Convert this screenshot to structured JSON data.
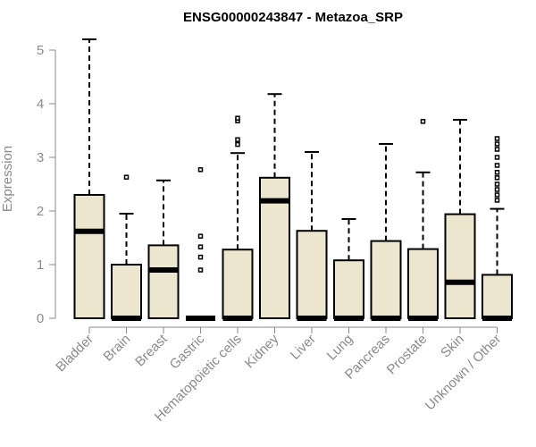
{
  "chart_data": {
    "type": "boxplot",
    "title": "ENSG00000243847 - Metazoa_SRP",
    "xlabel": "",
    "ylabel": "Expression",
    "ylim": [
      0,
      5.2
    ],
    "yticks": [
      0,
      1,
      2,
      3,
      4,
      5
    ],
    "colors": {
      "box_fill": "#ede6ce",
      "stroke": "#000000",
      "axis": "#8a8a8a"
    },
    "categories": [
      "Bladder",
      "Brain",
      "Breast",
      "Gastric",
      "Hematopoietic cells",
      "Kidney",
      "Liver",
      "Lung",
      "Pancreas",
      "Prostate",
      "Skin",
      "Unknown / Other"
    ],
    "boxes": [
      {
        "name": "Bladder",
        "min": 0,
        "q1": 0,
        "median": 1.62,
        "q3": 2.3,
        "max": 5.2,
        "outliers": []
      },
      {
        "name": "Brain",
        "min": 0,
        "q1": 0,
        "median": 0,
        "q3": 1.0,
        "max": 1.95,
        "outliers": [
          2.63
        ]
      },
      {
        "name": "Breast",
        "min": 0,
        "q1": 0,
        "median": 0.9,
        "q3": 1.36,
        "max": 2.57,
        "outliers": []
      },
      {
        "name": "Gastric",
        "min": 0,
        "q1": 0,
        "median": 0,
        "q3": 0,
        "max": 0,
        "outliers": [
          0.9,
          1.14,
          1.33,
          1.53,
          2.77
        ]
      },
      {
        "name": "Hematopoietic cells",
        "min": 0,
        "q1": 0,
        "median": 0,
        "q3": 1.28,
        "max": 3.08,
        "outliers": [
          3.24,
          3.33,
          3.68,
          3.73
        ]
      },
      {
        "name": "Kidney",
        "min": 0,
        "q1": 0,
        "median": 2.19,
        "q3": 2.62,
        "max": 4.18,
        "outliers": []
      },
      {
        "name": "Liver",
        "min": 0,
        "q1": 0,
        "median": 0,
        "q3": 1.63,
        "max": 3.1,
        "outliers": []
      },
      {
        "name": "Lung",
        "min": 0,
        "q1": 0,
        "median": 0,
        "q3": 1.08,
        "max": 1.85,
        "outliers": []
      },
      {
        "name": "Pancreas",
        "min": 0,
        "q1": 0,
        "median": 0,
        "q3": 1.44,
        "max": 3.25,
        "outliers": []
      },
      {
        "name": "Prostate",
        "min": 0,
        "q1": 0,
        "median": 0,
        "q3": 1.29,
        "max": 2.72,
        "outliers": [
          3.67
        ]
      },
      {
        "name": "Skin",
        "min": 0,
        "q1": 0,
        "median": 0.67,
        "q3": 1.94,
        "max": 3.7,
        "outliers": []
      },
      {
        "name": "Unknown / Other",
        "min": 0,
        "q1": 0,
        "median": 0,
        "q3": 0.81,
        "max": 2.04,
        "outliers": [
          2.2,
          2.3,
          2.4,
          2.5,
          2.62,
          2.72,
          2.85,
          3.0,
          3.15,
          3.25,
          3.35
        ]
      }
    ]
  }
}
